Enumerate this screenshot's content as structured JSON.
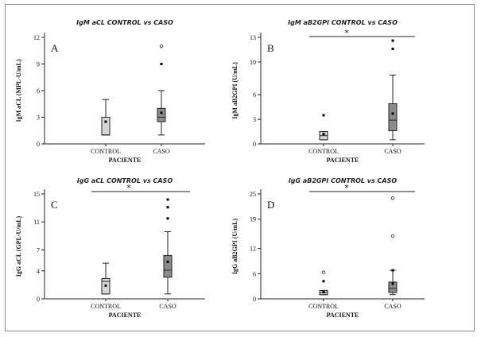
{
  "figure": {
    "frame_color": "#8a8a8a",
    "box_control_fill": "#d8d8d8",
    "box_caso_fill": "#8c8c8c"
  },
  "chart_data": [
    {
      "type": "boxplot",
      "letter": "A",
      "title": "IgM aCL CONTROL vs CASO",
      "xlabel": "PACIENTE",
      "ylabel": "IgM aCL (MPL-U/mL)",
      "ylim": [
        0,
        12
      ],
      "yticks": [
        0,
        3,
        6,
        9,
        12
      ],
      "categories": [
        "CONTROL",
        "CASO"
      ],
      "significance": "",
      "boxes": [
        {
          "name": "CONTROL",
          "whisker_low": 1.0,
          "q1": 1.0,
          "median": 1.0,
          "q3": 3.0,
          "whisker_high": 5.0,
          "mean": 2.5,
          "outliers": [],
          "extremes": []
        },
        {
          "name": "CASO",
          "whisker_low": 1.0,
          "q1": 2.5,
          "median": 3.0,
          "q3": 4.0,
          "whisker_high": 6.0,
          "mean": 3.5,
          "outliers": [
            9.0
          ],
          "extremes": [
            11.0
          ]
        }
      ]
    },
    {
      "type": "boxplot",
      "letter": "B",
      "title": "IgM aB2GPI CONTROL vs CASO",
      "xlabel": "PACIENTE",
      "ylabel": "IgM aB2GPI (U/mL)",
      "ylim": [
        0,
        13
      ],
      "yticks": [
        0,
        3,
        6,
        10,
        13
      ],
      "categories": [
        "CONTROL",
        "CASO"
      ],
      "significance": "*",
      "boxes": [
        {
          "name": "CONTROL",
          "whisker_low": 0.5,
          "q1": 0.5,
          "median": 1.0,
          "q3": 1.5,
          "whisker_high": 1.5,
          "mean": 1.2,
          "outliers": [
            3.5
          ],
          "extremes": []
        },
        {
          "name": "CASO",
          "whisker_low": 0.5,
          "q1": 1.6,
          "median": 2.9,
          "q3": 4.9,
          "whisker_high": 8.4,
          "mean": 3.7,
          "outliers": [
            11.6,
            12.6
          ],
          "extremes": []
        }
      ]
    },
    {
      "type": "boxplot",
      "letter": "C",
      "title": "IgG aCL CONTROL vs CASO",
      "xlabel": "PACIENTE",
      "ylabel": "IgG aCL (GPL-U/mL)",
      "ylim": [
        0,
        15
      ],
      "yticks": [
        0,
        4,
        7,
        11,
        15
      ],
      "categories": [
        "CONTROL",
        "CASO"
      ],
      "significance": "*",
      "boxes": [
        {
          "name": "CONTROL",
          "whisker_low": 0.7,
          "q1": 0.7,
          "median": 2.5,
          "q3": 2.9,
          "whisker_high": 5.1,
          "mean": 1.9,
          "outliers": [],
          "extremes": []
        },
        {
          "name": "CASO",
          "whisker_low": 0.7,
          "q1": 3.1,
          "median": 4.1,
          "q3": 6.2,
          "whisker_high": 9.6,
          "mean": 5.3,
          "outliers": [
            11.5,
            13.1,
            14.2
          ],
          "extremes": []
        }
      ]
    },
    {
      "type": "boxplot",
      "letter": "D",
      "title": "IgG aB2GPI CONTROL vs CASO",
      "xlabel": "PACIENTE",
      "ylabel": "IgG aB2GPI (U/mL)",
      "ylim": [
        0,
        25
      ],
      "yticks": [
        0,
        6,
        12,
        19,
        25
      ],
      "categories": [
        "CONTROL",
        "CASO"
      ],
      "significance": "*",
      "boxes": [
        {
          "name": "CONTROL",
          "whisker_low": 1.0,
          "q1": 1.0,
          "median": 1.5,
          "q3": 2.0,
          "whisker_high": 2.0,
          "mean": 1.6,
          "outliers": [
            4.2
          ],
          "extremes": [
            6.3
          ]
        },
        {
          "name": "CASO",
          "whisker_low": 1.0,
          "q1": 1.5,
          "median": 2.5,
          "q3": 4.0,
          "whisker_high": 6.8,
          "mean": 3.6,
          "outliers": [
            6.8
          ],
          "extremes": [
            15.0,
            24.0
          ]
        }
      ]
    }
  ]
}
